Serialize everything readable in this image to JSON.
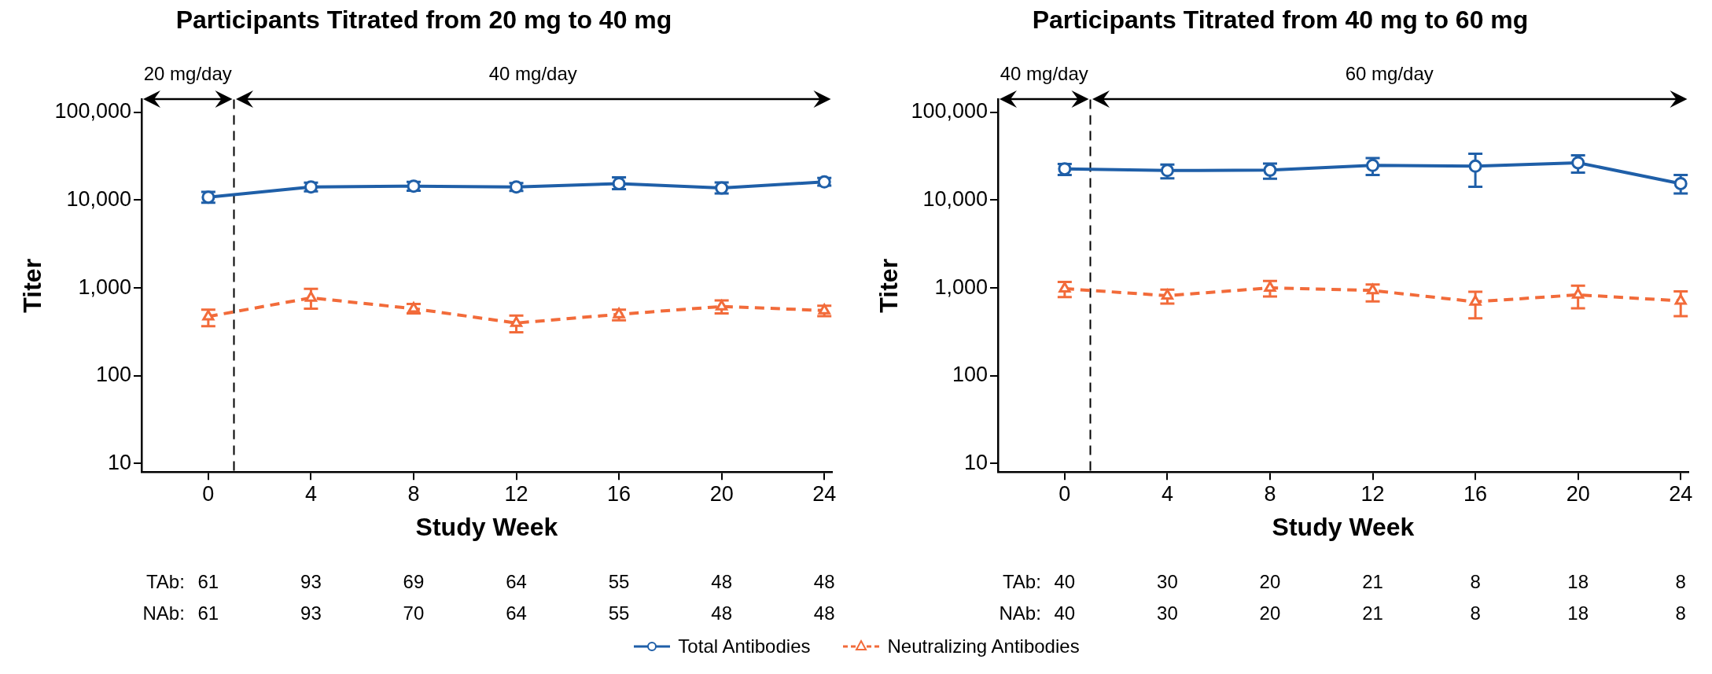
{
  "chart_data": [
    {
      "type": "line",
      "title": "Participants Titrated from 20 mg to 40 mg",
      "xlabel": "Study Week",
      "ylabel": "Titer",
      "x": [
        0,
        4,
        8,
        12,
        16,
        20,
        24
      ],
      "xlim": [
        -2.6,
        24.3
      ],
      "xticks": [
        0,
        4,
        8,
        12,
        16,
        20,
        24
      ],
      "log": "y",
      "ylim": [
        8,
        140000
      ],
      "yticks": [
        {
          "value": 10,
          "label": "10"
        },
        {
          "value": 100,
          "label": "100"
        },
        {
          "value": 1000,
          "label": "1,000"
        },
        {
          "value": 10000,
          "label": "10,000"
        },
        {
          "value": 100000,
          "label": "100,000"
        }
      ],
      "grid": false,
      "legend": "bottom",
      "ref_lines": [
        {
          "axis": "x",
          "value": 1,
          "color": "#000000",
          "line_style": "dashed"
        }
      ],
      "annotations": [
        "20 mg/day",
        "40 mg/day",
        "TAb: 61 93 69 64 55 48 48",
        "NAb: 61 93 70 64 55 48 48"
      ],
      "series": [
        {
          "name": "Total Antibodies",
          "color": "#1f5fa8",
          "marker": "circle",
          "line_style": "solid",
          "values": [
            10800,
            14100,
            14400,
            14100,
            15400,
            13700,
            16100
          ],
          "errors": [
            [
              9350,
              12400
            ],
            [
              12550,
              15800
            ],
            [
              12800,
              16100
            ],
            [
              12700,
              15600
            ],
            [
              13300,
              18100
            ],
            [
              11900,
              15900
            ],
            [
              14600,
              17900
            ]
          ]
        },
        {
          "name": "Neutralizing Antibodies",
          "color": "#f26b3a",
          "marker": "triangle",
          "line_style": "dashed",
          "values": [
            472,
            770,
            580,
            398,
            500,
            614,
            553
          ],
          "errors": [
            [
              367,
              566
            ],
            [
              580,
              977
            ],
            [
              512,
              656
            ],
            [
              313,
              483
            ],
            [
              427,
              566
            ],
            [
              512,
              719
            ],
            [
              477,
              627
            ]
          ]
        }
      ]
    },
    {
      "type": "line",
      "title": "Participants Titrated from 40 mg to 60 mg",
      "xlabel": "Study Week",
      "ylabel": "Titer",
      "x": [
        0,
        4,
        8,
        12,
        16,
        20,
        24
      ],
      "xlim": [
        -2.6,
        24.3
      ],
      "xticks": [
        0,
        4,
        8,
        12,
        16,
        20,
        24
      ],
      "log": "y",
      "ylim": [
        8,
        140000
      ],
      "yticks": [
        {
          "value": 10,
          "label": "10"
        },
        {
          "value": 100,
          "label": "100"
        },
        {
          "value": 1000,
          "label": "1,000"
        },
        {
          "value": 10000,
          "label": "10,000"
        },
        {
          "value": 100000,
          "label": "100,000"
        }
      ],
      "grid": false,
      "ref_lines": [
        {
          "axis": "x",
          "value": 1,
          "color": "#000000",
          "line_style": "dashed"
        }
      ],
      "annotations": [
        "40 mg/day",
        "60 mg/day",
        "TAb: 40 30 20 21 8 18 8",
        "NAb: 40 30 20 21 8 18 8"
      ],
      "series": [
        {
          "name": "Total Antibodies",
          "color": "#1f5fa8",
          "marker": "circle",
          "line_style": "solid",
          "values": [
            22700,
            21700,
            21900,
            24800,
            24300,
            26600,
            15400
          ],
          "errors": [
            [
              19300,
              25700
            ],
            [
              17700,
              25400
            ],
            [
              17500,
              26000
            ],
            [
              19300,
              30100
            ],
            [
              14200,
              33700
            ],
            [
              20500,
              32300
            ],
            [
              11900,
              19300
            ]
          ]
        },
        {
          "name": "Neutralizing Antibodies",
          "color": "#f26b3a",
          "marker": "triangle",
          "line_style": "dashed",
          "values": [
            980,
            815,
            1000,
            934,
            695,
            834,
            711
          ],
          "errors": [
            [
              787,
              1170
            ],
            [
              664,
              955
            ],
            [
              796,
              1200
            ],
            [
              703,
              1095
            ],
            [
              451,
              903
            ],
            [
              586,
              1059
            ],
            [
              477,
              912
            ]
          ]
        }
      ]
    }
  ]
}
